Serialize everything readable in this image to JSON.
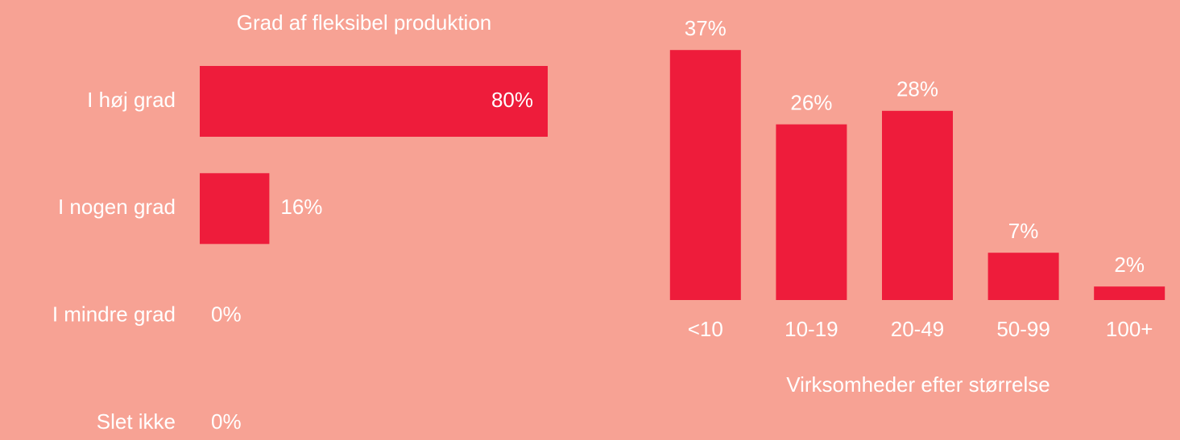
{
  "chart_data": [
    {
      "type": "hbar",
      "title": "Grad af fleksibel produktion",
      "categories": [
        "I høj grad",
        "I nogen grad",
        "I mindre grad",
        "Slet ikke"
      ],
      "values": [
        80,
        16,
        0,
        0
      ],
      "value_labels": [
        "80%",
        "16%",
        "0%",
        "0%"
      ],
      "color": "#ee1c3b",
      "xlim": [
        0,
        100
      ]
    },
    {
      "type": "bar",
      "xlabel": "Virksomheder efter størrelse",
      "categories": [
        "<10",
        "10-19",
        "20-49",
        "50-99",
        "100+"
      ],
      "values": [
        37,
        26,
        28,
        7,
        2
      ],
      "value_labels": [
        "37%",
        "26%",
        "28%",
        "7%",
        "2%"
      ],
      "color": "#ee1c3b",
      "ylim": [
        0,
        40
      ]
    }
  ]
}
